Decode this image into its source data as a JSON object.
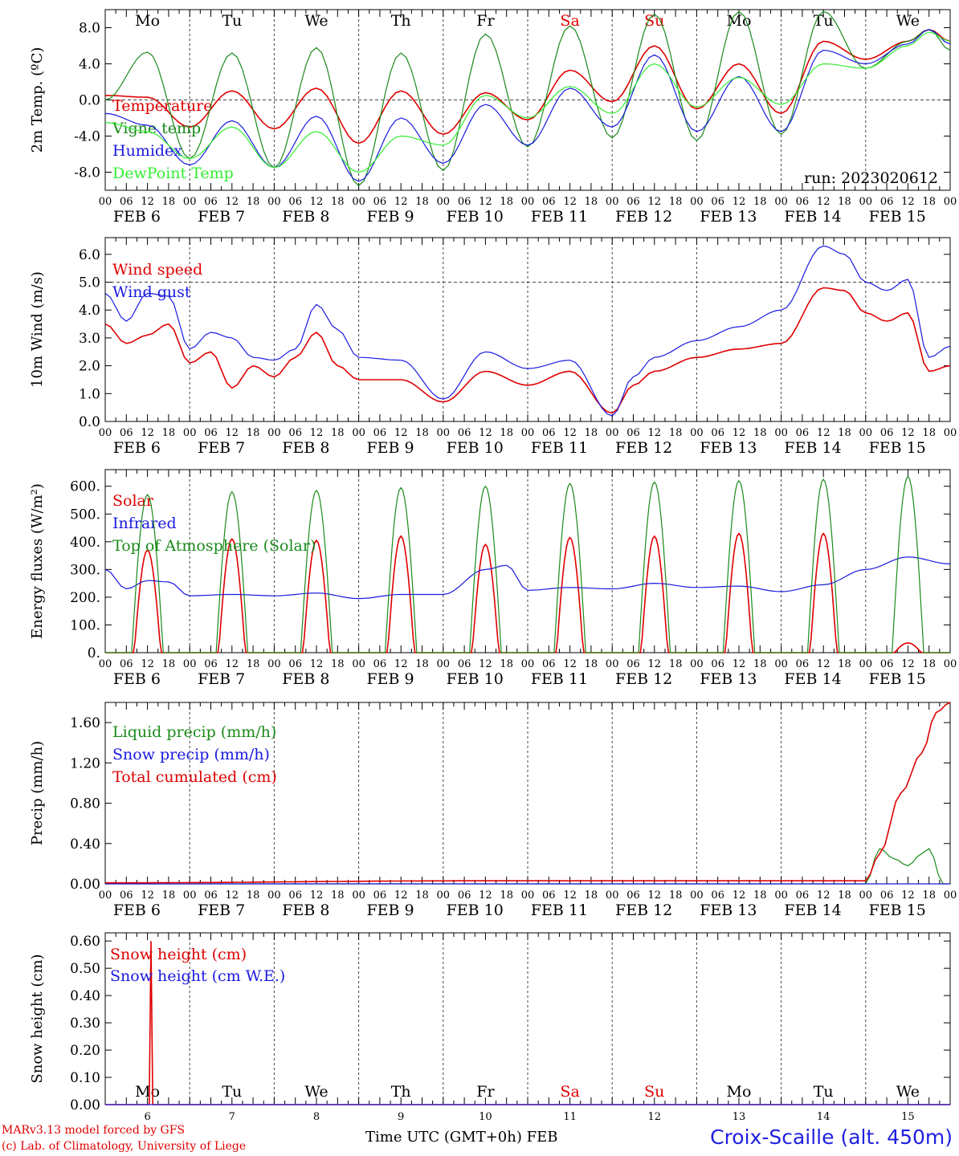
{
  "run_label": "run: 2023020612",
  "footer": {
    "model_line": "MARv3.13 model forced by GFS",
    "lab_line": "(c) Lab. of Climatology, University of Liege",
    "xlabel": "Time UTC (GMT+0h) FEB",
    "station": "Croix-Scaille (alt. 450m)"
  },
  "colors": {
    "red": "#e00000",
    "green": "#1a8a1a",
    "blue": "#1a1ae0",
    "lime": "#33ee33",
    "weekend": "#e00000"
  },
  "days": [
    {
      "dow": "Mo",
      "date": "FEB  6",
      "num": "6",
      "weekend": false
    },
    {
      "dow": "Tu",
      "date": "FEB  7",
      "num": "7",
      "weekend": false
    },
    {
      "dow": "We",
      "date": "FEB  8",
      "num": "8",
      "weekend": false
    },
    {
      "dow": "Th",
      "date": "FEB  9",
      "num": "9",
      "weekend": false
    },
    {
      "dow": "Fr",
      "date": "FEB 10",
      "num": "10",
      "weekend": false
    },
    {
      "dow": "Sa",
      "date": "FEB 11",
      "num": "11",
      "weekend": true
    },
    {
      "dow": "Su",
      "date": "FEB 12",
      "num": "12",
      "weekend": true
    },
    {
      "dow": "Mo",
      "date": "FEB 13",
      "num": "13",
      "weekend": false
    },
    {
      "dow": "Tu",
      "date": "FEB 14",
      "num": "14",
      "weekend": false
    },
    {
      "dow": "We",
      "date": "FEB 15",
      "num": "15",
      "weekend": false
    }
  ],
  "hour_ticks": [
    "00",
    "06",
    "12",
    "18"
  ],
  "chart_data": [
    {
      "type": "line",
      "ylabel": "2m Temp. (ºC)",
      "ylim": [
        -10,
        10
      ],
      "yticks": [
        8,
        4,
        0,
        -4,
        -8
      ],
      "ytick_labels": [
        "8.0",
        "4.0",
        "0.0",
        "-4.0",
        "-8.0"
      ],
      "ref_line": 0,
      "series": [
        {
          "name": "Temperature",
          "color": "red",
          "x": [
            0,
            12,
            24,
            36,
            48,
            60,
            72,
            84,
            96,
            108,
            120,
            132,
            144,
            156,
            168,
            180,
            192,
            204,
            216,
            228,
            234,
            240
          ],
          "y": [
            0.5,
            0.3,
            -3,
            1,
            -3.2,
            1.3,
            -4.8,
            1,
            -3.8,
            0.8,
            -2.2,
            3.3,
            -0.2,
            6,
            -1,
            4,
            -1.5,
            6.5,
            4.5,
            6.5,
            7.8,
            6.5
          ]
        },
        {
          "name": "Vigne temp",
          "color": "green",
          "x": [
            0,
            12,
            24,
            36,
            48,
            60,
            72,
            84,
            96,
            108,
            120,
            132,
            144,
            156,
            168,
            180,
            192,
            204,
            216,
            228,
            234,
            240
          ],
          "y": [
            0,
            5.3,
            -6.5,
            5.2,
            -7.5,
            5.8,
            -9.5,
            5.2,
            -7.8,
            7.3,
            -5.2,
            8.2,
            -4.2,
            9.5,
            -4.5,
            9.8,
            -3.8,
            9.8,
            3.5,
            6.5,
            7.8,
            5.5
          ]
        },
        {
          "name": "Humidex",
          "color": "blue",
          "x": [
            0,
            12,
            24,
            36,
            48,
            60,
            72,
            84,
            96,
            108,
            120,
            132,
            144,
            156,
            168,
            180,
            192,
            204,
            216,
            228,
            234,
            240
          ],
          "y": [
            -1.5,
            -2.8,
            -7.2,
            -2.3,
            -7.5,
            -1.8,
            -9,
            -2,
            -7,
            -0.5,
            -5,
            1.3,
            -3,
            5,
            -3.5,
            2.6,
            -3.5,
            5.5,
            4,
            6.2,
            7.8,
            6.2
          ]
        },
        {
          "name": "DewPoint Temp",
          "color": "lime",
          "x": [
            0,
            12,
            24,
            36,
            48,
            60,
            72,
            84,
            96,
            108,
            120,
            132,
            144,
            156,
            168,
            180,
            192,
            204,
            216,
            228,
            234,
            240
          ],
          "y": [
            -2.5,
            -3.5,
            -6.5,
            -3,
            -7.5,
            -3.5,
            -8,
            -4,
            -5,
            0.5,
            -2,
            1.5,
            -1.5,
            4,
            -0.8,
            2.5,
            -0.5,
            4,
            3.5,
            6,
            7.5,
            6.5
          ]
        }
      ]
    },
    {
      "type": "line",
      "ylabel": "10m Wind (m/s)",
      "ylim": [
        0,
        6.6
      ],
      "yticks": [
        6,
        5,
        4,
        3,
        2,
        1,
        0
      ],
      "ytick_labels": [
        "6.0",
        "5.0",
        "4.0",
        "3.0",
        "2.0",
        "1.0",
        "0.0"
      ],
      "ref_line": 5,
      "series": [
        {
          "name": "Wind speed",
          "color": "red",
          "x": [
            0,
            6,
            12,
            18,
            24,
            30,
            36,
            42,
            48,
            54,
            60,
            66,
            72,
            84,
            96,
            108,
            120,
            132,
            144,
            150,
            156,
            168,
            180,
            192,
            204,
            210,
            216,
            222,
            228,
            234,
            240
          ],
          "y": [
            3.5,
            2.8,
            3.1,
            3.5,
            2.1,
            2.5,
            1.2,
            2,
            1.6,
            2.3,
            3.2,
            2,
            1.5,
            1.5,
            0.7,
            1.8,
            1.3,
            1.8,
            0.3,
            1.3,
            1.8,
            2.3,
            2.6,
            2.8,
            4.8,
            4.7,
            3.9,
            3.6,
            3.9,
            1.8,
            2
          ]
        },
        {
          "name": "Wind gust",
          "color": "blue",
          "x": [
            0,
            6,
            12,
            18,
            24,
            30,
            36,
            42,
            48,
            54,
            60,
            66,
            72,
            84,
            96,
            108,
            120,
            132,
            144,
            150,
            156,
            168,
            180,
            192,
            204,
            210,
            216,
            222,
            228,
            234,
            240
          ],
          "y": [
            4.6,
            3.6,
            4.6,
            4.5,
            2.6,
            3.2,
            3,
            2.3,
            2.2,
            2.6,
            4.2,
            3.3,
            2.3,
            2.2,
            0.8,
            2.5,
            1.9,
            2.2,
            0.2,
            1.6,
            2.3,
            2.9,
            3.4,
            4,
            6.3,
            6,
            5,
            4.7,
            5.1,
            2.3,
            2.7
          ]
        }
      ]
    },
    {
      "type": "line",
      "ylabel": "Energy fluxes (W/m²)",
      "ylim": [
        0,
        660
      ],
      "yticks": [
        600,
        500,
        400,
        300,
        200,
        100,
        0
      ],
      "ytick_labels": [
        "600.",
        "500.",
        "400.",
        "300.",
        "200.",
        "100.",
        "0."
      ],
      "series": [
        {
          "name": "Solar",
          "color": "red",
          "peaks": [
            370,
            410,
            405,
            420,
            390,
            415,
            420,
            430,
            430,
            35
          ]
        },
        {
          "name": "Infrared",
          "color": "blue",
          "x": [
            0,
            6,
            12,
            18,
            24,
            36,
            48,
            60,
            72,
            84,
            96,
            108,
            114,
            120,
            132,
            144,
            156,
            168,
            180,
            192,
            204,
            216,
            228,
            240
          ],
          "y": [
            300,
            230,
            260,
            255,
            205,
            210,
            205,
            215,
            195,
            210,
            210,
            300,
            315,
            225,
            235,
            230,
            250,
            235,
            240,
            220,
            245,
            300,
            345,
            320
          ]
        },
        {
          "name": "Top of Atmosphere (Solar)",
          "color": "green",
          "peaks": [
            570,
            580,
            585,
            595,
            600,
            610,
            615,
            620,
            625,
            635
          ]
        }
      ]
    },
    {
      "type": "line",
      "ylabel": "Precip (mm/h)",
      "ylim": [
        0,
        1.8
      ],
      "yticks": [
        1.6,
        1.2,
        0.8,
        0.4,
        0
      ],
      "ytick_labels": [
        "1.60",
        "1.20",
        "0.80",
        "0.40",
        "0.00"
      ],
      "series": [
        {
          "name": "Liquid precip (mm/h)",
          "color": "green",
          "x": [
            0,
            216,
            220,
            224,
            228,
            232,
            234,
            238,
            240
          ],
          "y": [
            0,
            0,
            0.35,
            0.25,
            0.18,
            0.3,
            0.35,
            0,
            0
          ]
        },
        {
          "name": "Snow precip (mm/h)",
          "color": "blue",
          "x": [
            0,
            240
          ],
          "y": [
            0,
            0
          ]
        },
        {
          "name": "Total cumulated (cm)",
          "color": "red",
          "x": [
            0,
            104,
            216,
            220,
            226,
            232,
            236,
            240
          ],
          "y": [
            0.01,
            0.03,
            0.03,
            0.3,
            0.9,
            1.3,
            1.7,
            1.8
          ]
        }
      ]
    },
    {
      "type": "line",
      "ylabel": "Snow height (cm)",
      "ylim": [
        0,
        0.63
      ],
      "yticks": [
        0.6,
        0.5,
        0.4,
        0.3,
        0.2,
        0.1,
        0
      ],
      "ytick_labels": [
        "0.60",
        "0.50",
        "0.40",
        "0.30",
        "0.20",
        "0.10",
        "0.00"
      ],
      "series": [
        {
          "name": "Snow height (cm)",
          "color": "red",
          "x": [
            0,
            12.5,
            13,
            13.5,
            240
          ],
          "y": [
            0,
            0,
            0.6,
            0,
            0
          ]
        },
        {
          "name": "Snow height (cm W.E.)",
          "color": "blue",
          "x": [
            0,
            240
          ],
          "y": [
            0,
            0
          ]
        }
      ]
    }
  ]
}
